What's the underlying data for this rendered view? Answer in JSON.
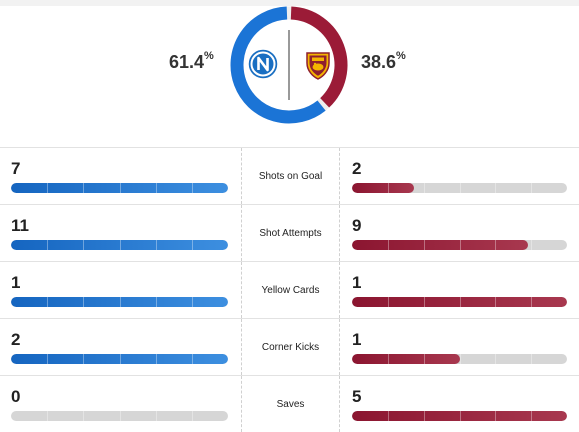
{
  "possession": {
    "home": {
      "team_logo_icon": "napoli-crest-icon",
      "value": "61.4",
      "unit": "%",
      "fraction": 0.614,
      "color": "#1b74d6"
    },
    "away": {
      "team_logo_icon": "roma-crest-icon",
      "value": "38.6",
      "unit": "%",
      "fraction": 0.386,
      "color": "#9b1b37"
    }
  },
  "stats": [
    {
      "label": "Shots on Goal",
      "home": "7",
      "away": "2",
      "home_fill": 1.0,
      "away_fill": 0.29
    },
    {
      "label": "Shot Attempts",
      "home": "11",
      "away": "9",
      "home_fill": 1.0,
      "away_fill": 0.82
    },
    {
      "label": "Yellow Cards",
      "home": "1",
      "away": "1",
      "home_fill": 1.0,
      "away_fill": 1.0
    },
    {
      "label": "Corner Kicks",
      "home": "2",
      "away": "1",
      "home_fill": 1.0,
      "away_fill": 0.5
    },
    {
      "label": "Saves",
      "home": "0",
      "away": "5",
      "home_fill": 0.0,
      "away_fill": 1.0
    }
  ],
  "colors": {
    "home_bar": "#1b74d6",
    "away_bar": "#9b1b37",
    "empty_bar": "#d6d6d6"
  }
}
